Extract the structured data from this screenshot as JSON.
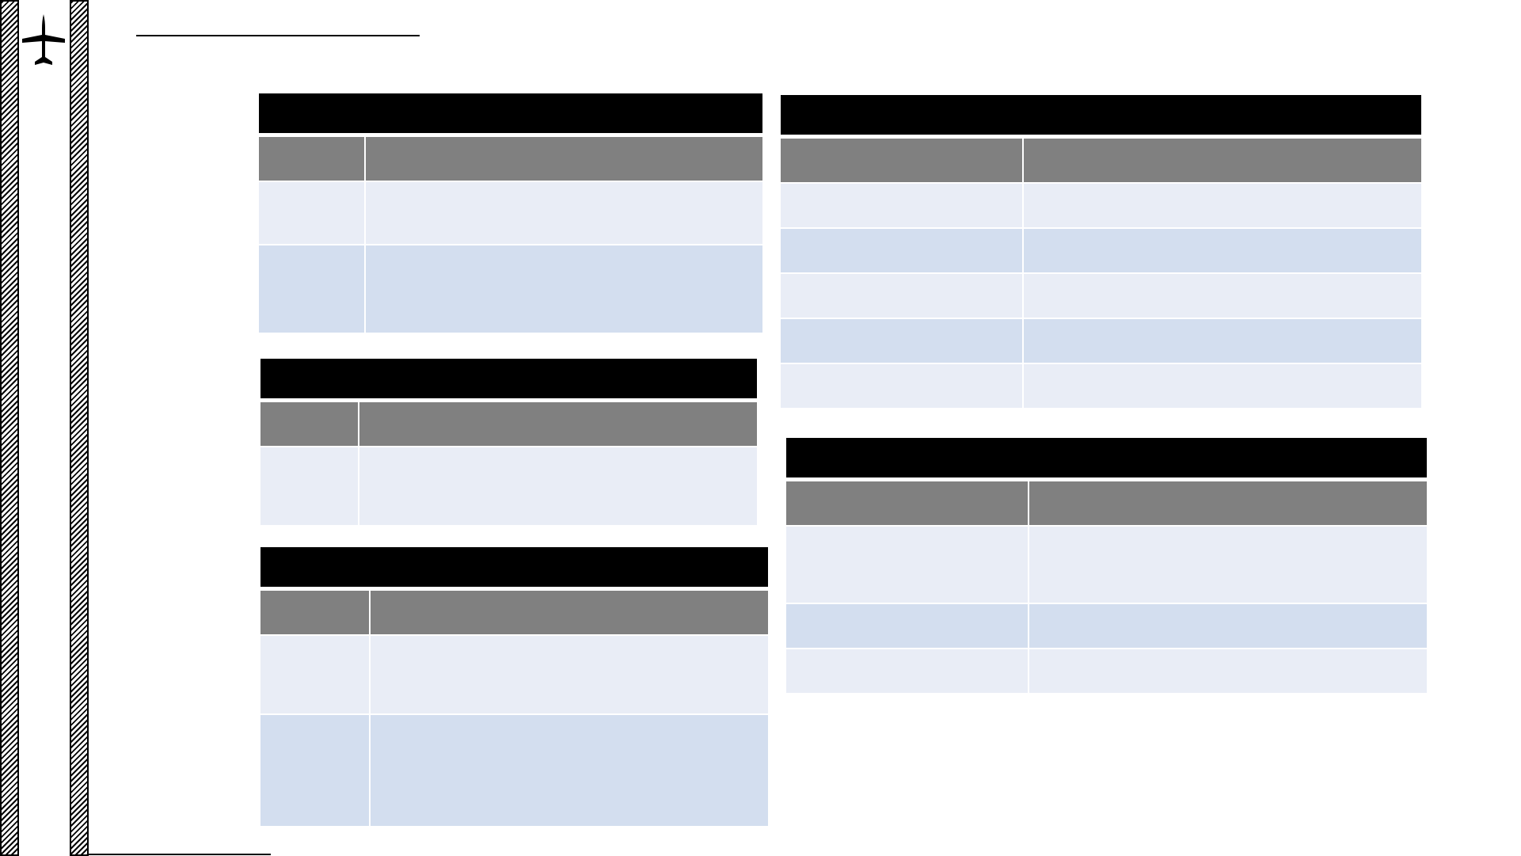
{
  "colors": {
    "title_bar": "#000000",
    "header_row": "#808080",
    "row_light": "#e9edf6",
    "row_dark": "#d3deef"
  },
  "logo": {
    "icon": "airplane-icon"
  },
  "tables": {
    "t1": {
      "title": "",
      "headers": [
        "",
        ""
      ]
    },
    "t2": {
      "title": "",
      "headers": [
        "",
        ""
      ]
    },
    "t3": {
      "title": "",
      "headers": [
        "",
        ""
      ]
    },
    "t4": {
      "title": "",
      "headers": [
        "",
        ""
      ]
    },
    "t5": {
      "title": "",
      "headers": [
        "",
        ""
      ]
    }
  }
}
